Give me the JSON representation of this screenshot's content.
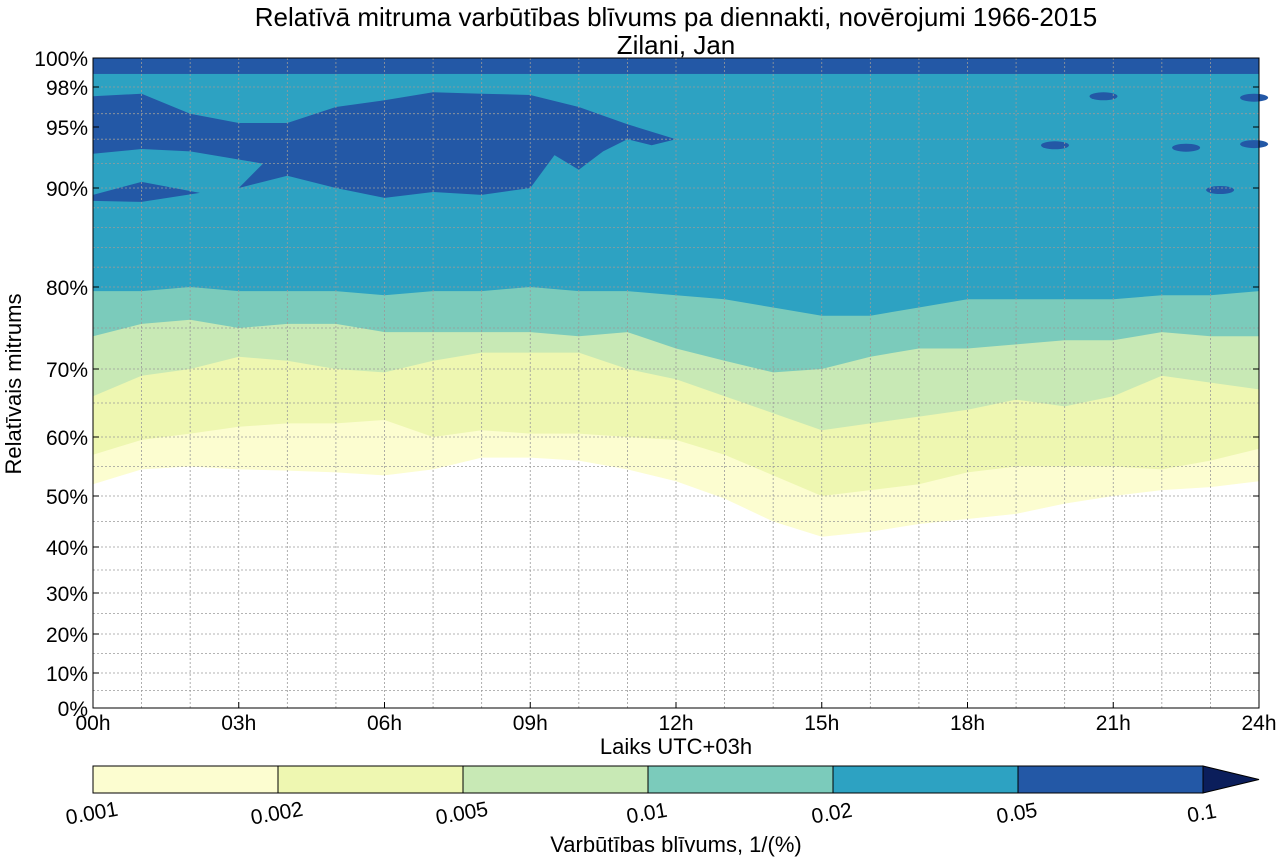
{
  "chart_data": {
    "type": "contourf",
    "title": "Relatīvā mitruma varbūtības blīvums pa diennakti, novērojumi 1966-2015",
    "subtitle": "Zilani, Jan",
    "xlabel": "Laiks UTC+03h",
    "ylabel": "Relatīvais mitrums",
    "xlim": [
      0,
      24
    ],
    "ylim": [
      0,
      100
    ],
    "x_ticks": [
      0,
      3,
      6,
      9,
      12,
      15,
      18,
      21,
      24
    ],
    "x_tick_labels": [
      "00h",
      "03h",
      "06h",
      "09h",
      "12h",
      "15h",
      "18h",
      "21h",
      "24h"
    ],
    "y_ticks": [
      0,
      10,
      20,
      30,
      40,
      50,
      60,
      70,
      80,
      90,
      95,
      98,
      100
    ],
    "y_tick_labels": [
      "0%",
      "10%",
      "20%",
      "30%",
      "40%",
      "50%",
      "60%",
      "70%",
      "80%",
      "90%",
      "95%",
      "98%",
      "100%"
    ],
    "grid": true,
    "colorbar": {
      "label": "Varbūtības blīvums, 1/(%)",
      "levels": [
        0.001,
        0.002,
        0.005,
        0.01,
        0.02,
        0.05,
        0.1
      ],
      "level_labels": [
        "0.001",
        "0.002",
        "0.005",
        "0.01",
        "0.02",
        "0.05",
        "0.1"
      ],
      "colors": [
        "#fcfdd0",
        "#eef7b1",
        "#c8e9b5",
        "#7bcbbb",
        "#2da2c2",
        "#2358a6",
        "#0b1e5b"
      ],
      "extend": "max"
    },
    "hours": [
      0,
      1,
      2,
      3,
      4,
      5,
      6,
      7,
      8,
      9,
      10,
      11,
      12,
      13,
      14,
      15,
      16,
      17,
      18,
      19,
      20,
      21,
      22,
      23,
      24
    ],
    "band_lower_boundaries_rh": {
      "0.001": [
        52,
        54.5,
        55,
        54.5,
        54.3,
        54,
        53.5,
        54.5,
        56.5,
        56.5,
        56,
        54.5,
        52.5,
        49.5,
        45,
        42,
        43,
        44.5,
        45.5,
        46.5,
        48.5,
        50,
        51,
        51.5,
        52.5
      ],
      "0.002": [
        57,
        59.5,
        60.5,
        61.5,
        62,
        62,
        62.5,
        60,
        61,
        60.5,
        60.5,
        60,
        59.5,
        57,
        53.5,
        50,
        51,
        52,
        54,
        55,
        55,
        55,
        54.5,
        56,
        58
      ],
      "0.005": [
        66,
        69,
        70,
        71.5,
        71,
        70,
        69.5,
        71,
        72,
        72,
        72,
        70,
        68.5,
        66,
        63.5,
        61,
        62,
        63,
        64,
        65.5,
        64.5,
        66,
        69,
        68,
        67
      ],
      "0.01": [
        74,
        75.5,
        76,
        75,
        75.5,
        75.5,
        74.5,
        74.5,
        74.5,
        74.5,
        74,
        74.5,
        72.5,
        71,
        69.5,
        70,
        71.5,
        72.5,
        72.5,
        73,
        73.5,
        73.5,
        74.5,
        74,
        74
      ],
      "0.02": [
        79.5,
        79.5,
        80,
        79.5,
        79.5,
        79.5,
        79,
        79.5,
        79.5,
        80,
        79.5,
        79.5,
        79,
        78.5,
        77.5,
        76.5,
        76.5,
        77.5,
        78.5,
        78.5,
        78.5,
        78.5,
        79,
        79,
        79.5
      ]
    },
    "dense_regions_0.05": [
      {
        "label": "upper patch, hours 00h-12h",
        "rh_range": [
          92,
          98
        ]
      },
      {
        "label": "patch near 00h",
        "rh_range": [
          89,
          90.5
        ]
      },
      {
        "label": "top strip",
        "rh_range": [
          99,
          100
        ]
      }
    ]
  }
}
